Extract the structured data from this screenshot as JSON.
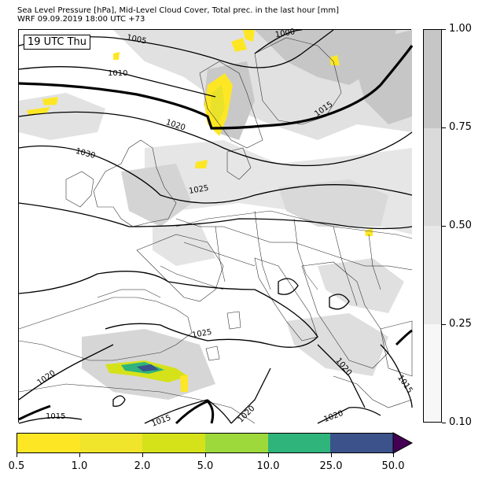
{
  "header": {
    "title_line1": "Sea Level Pressure [hPa], Mid-Level Cloud Cover, Total prec. in the last hour [mm]",
    "title_line2": "WRF 09.09.2019 18:00 UTC +73"
  },
  "map": {
    "time_label": "19 UTC Thu",
    "isobars": [
      {
        "value": "1005",
        "style": "thin"
      },
      {
        "value": "1010",
        "style": "thin"
      },
      {
        "value": "1000",
        "style": "thin"
      },
      {
        "value": "1015",
        "style": "bold"
      },
      {
        "value": "1020",
        "style": "thin"
      },
      {
        "value": "1030",
        "style": "thin"
      },
      {
        "value": "1025",
        "style": "thin"
      },
      {
        "value": "1025",
        "style": "thin"
      },
      {
        "value": "1020",
        "style": "thin"
      },
      {
        "value": "1020",
        "style": "thin"
      },
      {
        "value": "1015",
        "style": "thin"
      },
      {
        "value": "1015",
        "style": "thin"
      },
      {
        "value": "1020",
        "style": "thin"
      },
      {
        "value": "1020",
        "style": "thin"
      },
      {
        "value": "1015",
        "style": "thin"
      }
    ]
  },
  "cloud_colorbar": {
    "ticks": [
      "0.10",
      "0.25",
      "0.50",
      "0.75",
      "1.00"
    ],
    "colors": [
      "#f7f7f7",
      "#e8e8e8",
      "#dadada",
      "#c6c6c6"
    ]
  },
  "precip_colorbar": {
    "ticks": [
      "0.5",
      "1.0",
      "2.0",
      "5.0",
      "10.0",
      "25.0",
      "50.0"
    ],
    "colors": [
      "#fde725",
      "#f0e52a",
      "#d5e21a",
      "#9dd93b",
      "#2fb47c",
      "#3b528b",
      "#440154"
    ],
    "extend": "max"
  }
}
